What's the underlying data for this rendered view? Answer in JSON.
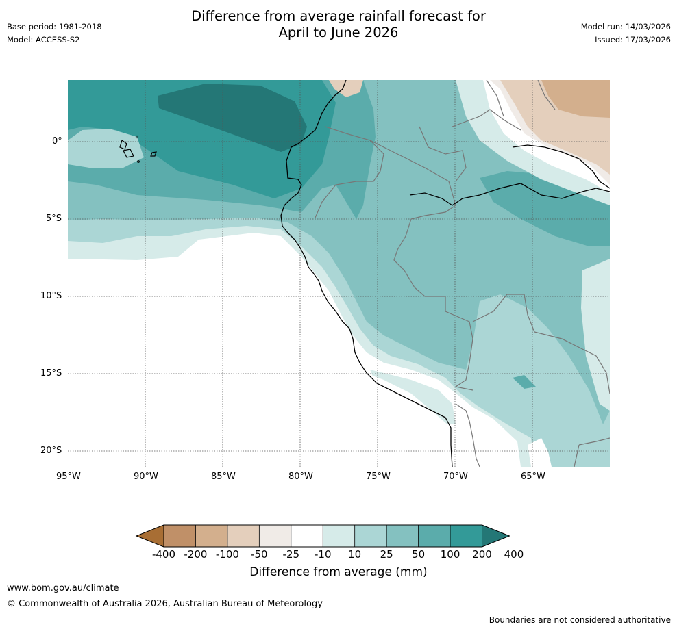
{
  "header": {
    "title_line1": "Difference from average rainfall forecast for",
    "title_line2": "April to June 2026",
    "base_period": "Base period: 1981-2018",
    "model": "Model: ACCESS-S2",
    "model_run": "Model run: 14/03/2026",
    "issued": "Issued: 17/03/2026"
  },
  "map": {
    "lat_labels": [
      "0°",
      "5°S",
      "10°S",
      "15°S",
      "20°S"
    ],
    "lon_labels": [
      "95°W",
      "90°W",
      "85°W",
      "80°W",
      "75°W",
      "70°W",
      "65°W"
    ]
  },
  "colorbar": {
    "title": "Difference from average (mm)",
    "labels": [
      "-400",
      "-200",
      "-100",
      "-50",
      "-25",
      "-10",
      "10",
      "25",
      "50",
      "100",
      "200",
      "400"
    ],
    "colors": [
      "#a86e34",
      "#c09068",
      "#d3af8d",
      "#e4cfbc",
      "#f0ebe7",
      "#ffffff",
      "#d6ebe9",
      "#abd6d5",
      "#84c1c0",
      "#5bacab",
      "#339a98",
      "#247776"
    ]
  },
  "footer": {
    "url": "www.bom.gov.au/climate",
    "copyright": "© Commonwealth of Australia 2026, Australian Bureau of Meteorology",
    "disclaimer": "Boundaries are not considered authoritative"
  }
}
